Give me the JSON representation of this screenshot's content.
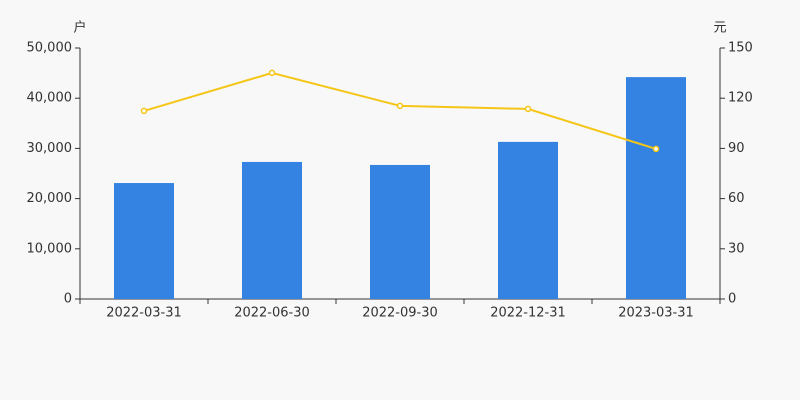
{
  "chart_data": {
    "type": "bar_line",
    "y_label": "户",
    "y2_label": "元",
    "categories": [
      "2022-03-31",
      "2022-06-30",
      "2022-09-30",
      "2022-12-31",
      "2023-03-31"
    ],
    "series": [
      {
        "type": "bar",
        "color": "#3483e3",
        "values": [
          23100,
          27300,
          26700,
          31300,
          44200
        ]
      },
      {
        "type": "line",
        "color": "#f5c518",
        "axis": "y2",
        "values": [
          112.4,
          135.1,
          115.4,
          113.6,
          89.7
        ]
      }
    ],
    "ylim": [
      0,
      50000
    ],
    "yticks": [
      0,
      {
        "value": 10000,
        "label": "10,000"
      },
      {
        "value": 20000,
        "label": "20,000"
      },
      {
        "value": 30000,
        "label": "30,000"
      },
      {
        "value": 40000,
        "label": "40,000"
      },
      {
        "value": 50000,
        "label": "50,000"
      }
    ],
    "y2lim": [
      0,
      150
    ],
    "y2ticks": [
      0,
      30,
      60,
      90,
      120,
      150
    ]
  }
}
